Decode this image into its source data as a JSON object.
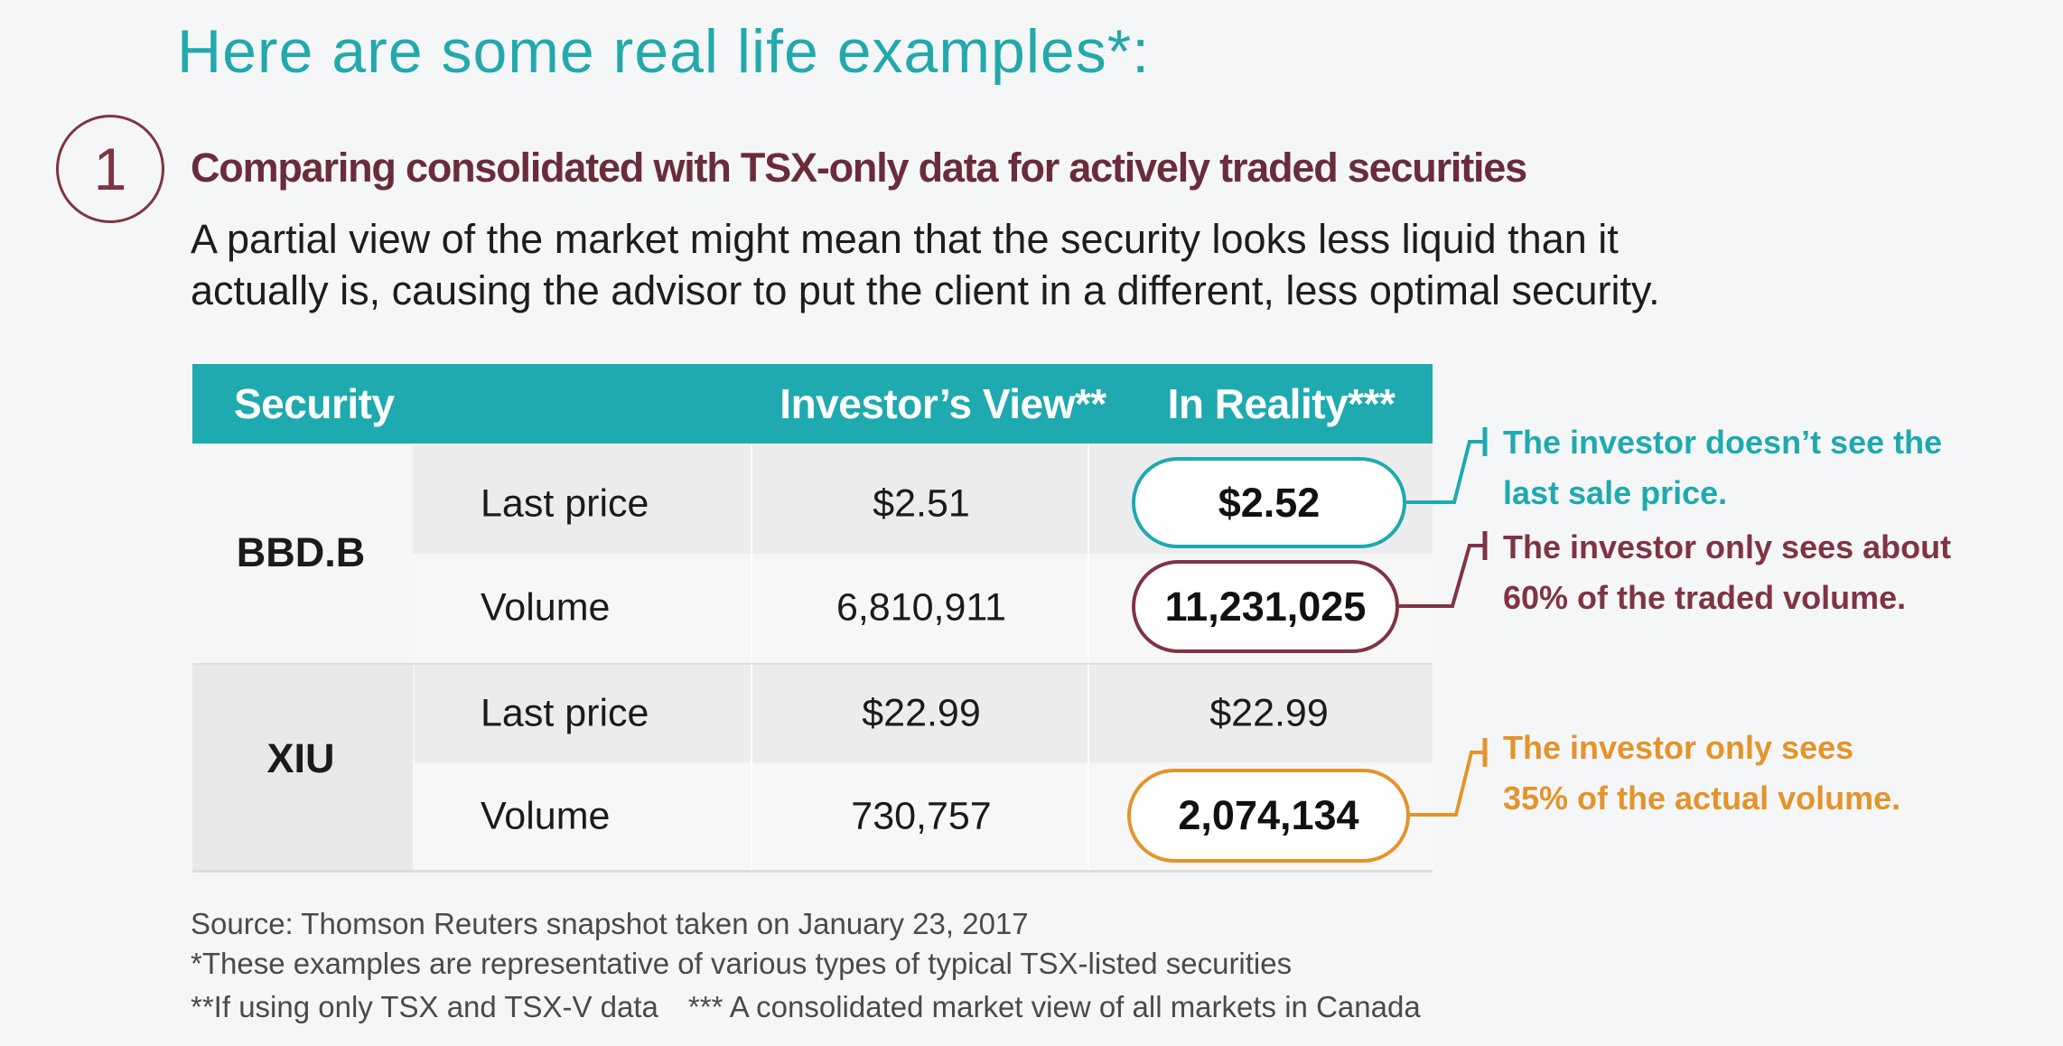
{
  "heading": "Here are some real life examples*:",
  "example": {
    "number": "1",
    "title": "Comparing consolidated with TSX-only data for actively traded securities",
    "description_line1": "A partial view of the market might mean that the security looks less liquid than it",
    "description_line2": "actually is, causing the advisor to put the client in a different, less optimal security."
  },
  "table": {
    "headers": {
      "security": "Security",
      "investor_view": "Investor’s View**",
      "in_reality": "In Reality***"
    },
    "rows": [
      {
        "security": "BBD.B",
        "last_price_label": "Last price",
        "last_price_view": "$2.51",
        "last_price_reality": "$2.52",
        "volume_label": "Volume",
        "volume_view": "6,810,911",
        "volume_reality": "11,231,025"
      },
      {
        "security": "XIU",
        "last_price_label": "Last price",
        "last_price_view": "$22.99",
        "last_price_reality": "$22.99",
        "volume_label": "Volume",
        "volume_view": "730,757",
        "volume_reality": "2,074,134"
      }
    ]
  },
  "callouts": {
    "bbd_price_line1": "The investor doesn’t see the",
    "bbd_price_line2": "last sale price.",
    "bbd_volume_line1": "The investor only sees about",
    "bbd_volume_line2": "60% of the traded volume.",
    "xiu_volume_line1": "The investor only sees",
    "xiu_volume_line2": "35% of the actual volume."
  },
  "footnotes": {
    "source": "Source: Thomson Reuters snapshot taken on January 23, 2017",
    "note1": "*These examples are representative of various types of typical TSX-listed securities",
    "note2": "**If using only TSX and TSX-V data *** A consolidated market view of all markets in Canada"
  },
  "colors": {
    "teal": "#1eaaae",
    "maroon": "#7f3444",
    "orange": "#e3942a"
  }
}
